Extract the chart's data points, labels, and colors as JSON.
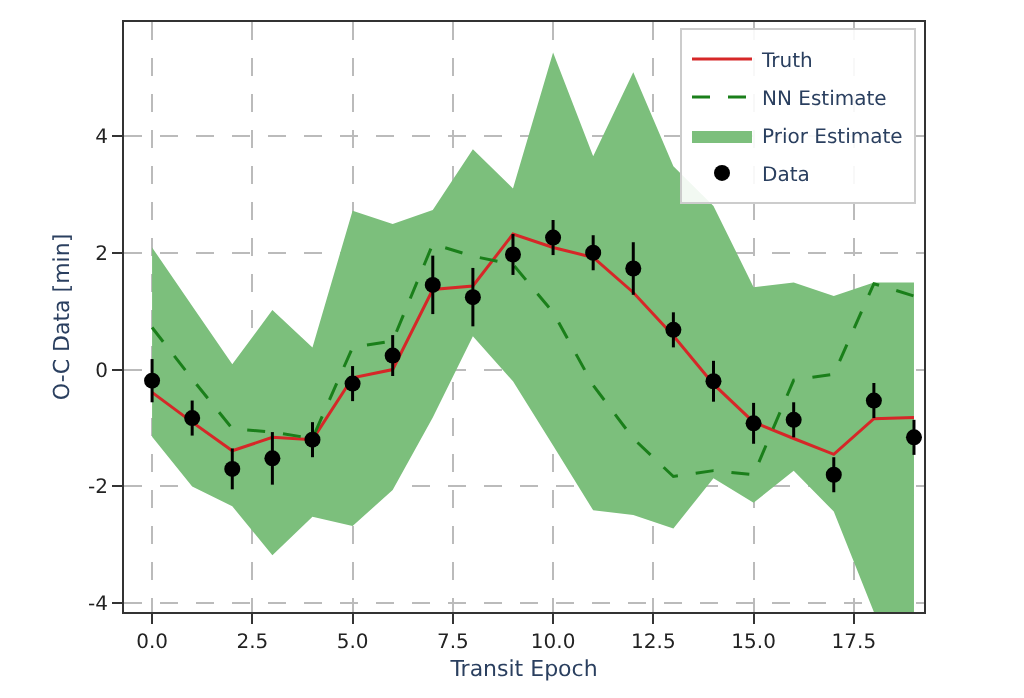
{
  "chart_data": {
    "type": "line",
    "xlabel": "Transit Epoch",
    "ylabel": "O-C Data [min]",
    "x": [
      0,
      1,
      2,
      3,
      4,
      5,
      6,
      7,
      8,
      9,
      10,
      11,
      12,
      13,
      14,
      15,
      16,
      17,
      18,
      19
    ],
    "xlim": [
      -0.7,
      19.25
    ],
    "xticks": [
      {
        "value": 0,
        "label": "0.0"
      },
      {
        "value": 2.5,
        "label": "2.5"
      },
      {
        "value": 5,
        "label": "5.0"
      },
      {
        "value": 7.5,
        "label": "7.5"
      },
      {
        "value": 10,
        "label": "10.0"
      },
      {
        "value": 12.5,
        "label": "12.5"
      },
      {
        "value": 15,
        "label": "15.0"
      },
      {
        "value": 17.5,
        "label": "17.5"
      }
    ],
    "ylim": [
      -4.15,
      5.95
    ],
    "yticks": [
      -4,
      -2,
      0,
      2,
      4
    ],
    "grid": true,
    "legend": "top right",
    "series": [
      {
        "name": "Truth",
        "color": "#d62728",
        "line_style": "solid",
        "values": [
          -0.39,
          -0.9,
          -1.39,
          -1.16,
          -1.2,
          -0.14,
          0.0,
          1.37,
          1.43,
          2.32,
          2.09,
          1.92,
          1.32,
          0.58,
          -0.25,
          -0.9,
          -1.18,
          -1.45,
          -0.84,
          -0.82
        ]
      },
      {
        "name": "NN Estimate",
        "color": "#1a7f1a",
        "line_style": "dashed",
        "values": [
          0.72,
          -0.16,
          -1.01,
          -1.07,
          -1.18,
          0.38,
          0.49,
          2.15,
          1.94,
          1.8,
          0.98,
          -0.27,
          -1.18,
          -1.83,
          -1.73,
          -1.8,
          -0.18,
          -0.08,
          1.47,
          1.26
        ]
      },
      {
        "name": "Prior Estimate",
        "type": "area",
        "color": "#7cbf7c",
        "values": [
          null,
          null,
          null,
          null,
          null,
          null,
          null,
          null,
          null,
          null,
          null,
          null,
          null,
          null,
          null,
          null,
          null,
          null,
          null,
          null
        ],
        "lower": [
          -1.15,
          -2.0,
          -2.34,
          -3.18,
          -2.52,
          -2.68,
          -2.06,
          -0.82,
          0.57,
          -0.2,
          -1.3,
          -2.41,
          -2.49,
          -2.72,
          -1.86,
          -2.28,
          -1.73,
          -2.43,
          -4.15,
          -4.15
        ],
        "upper": [
          2.09,
          1.09,
          0.09,
          1.02,
          0.38,
          2.72,
          2.49,
          2.73,
          3.77,
          3.1,
          5.43,
          3.65,
          5.09,
          3.48,
          2.8,
          1.41,
          1.49,
          1.26,
          1.49,
          1.49
        ]
      },
      {
        "name": "Data",
        "type": "scatter",
        "color": "#000000",
        "marker": "circle",
        "values": [
          -0.19,
          -0.83,
          -1.7,
          -1.52,
          -1.2,
          -0.24,
          0.24,
          1.45,
          1.24,
          1.97,
          2.26,
          2.0,
          1.73,
          0.68,
          -0.2,
          -0.92,
          -0.86,
          -1.8,
          -0.53,
          -1.16
        ],
        "errors": [
          0.37,
          0.3,
          0.35,
          0.45,
          0.3,
          0.3,
          0.35,
          0.5,
          0.5,
          0.35,
          0.3,
          0.3,
          0.45,
          0.3,
          0.35,
          0.35,
          0.3,
          0.3,
          0.3,
          0.3
        ]
      }
    ]
  }
}
